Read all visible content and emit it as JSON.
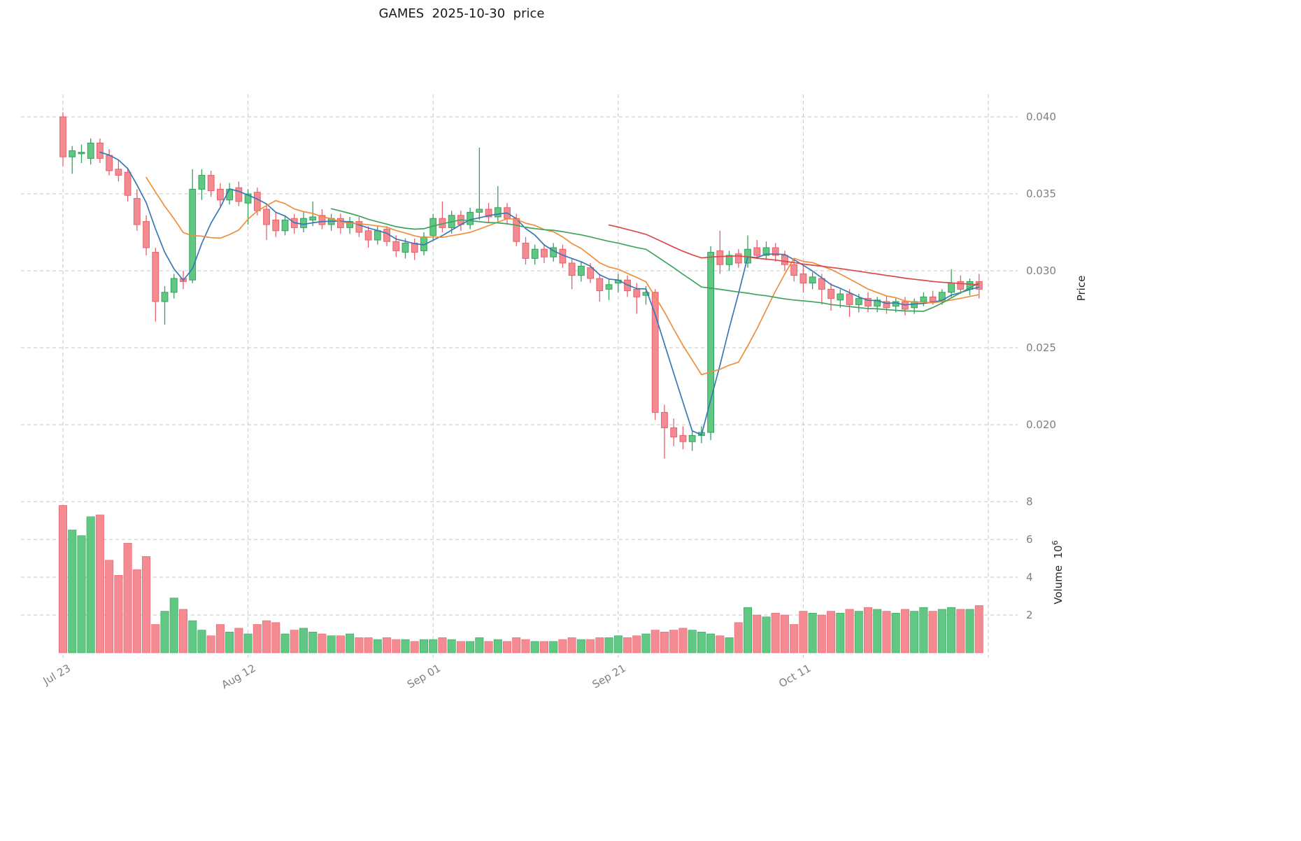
{
  "title": "GAMES  2025-10-30  price",
  "chart_data": {
    "type": "candlestick",
    "title": "GAMES  2025-10-30  price",
    "symbol": "GAMES",
    "as_of_date": "2025-10-30",
    "legend_position": "none",
    "grid": "dashed",
    "price_axis": {
      "label": "Price",
      "side": "right",
      "ticks": [
        {
          "value": 0.04,
          "label": "0.040"
        },
        {
          "value": 0.035,
          "label": "0.035"
        },
        {
          "value": 0.03,
          "label": "0.030"
        },
        {
          "value": 0.025,
          "label": "0.025"
        },
        {
          "value": 0.02,
          "label": "0.020"
        }
      ]
    },
    "volume_axis": {
      "label_base": "Volume  10",
      "label_exp": "6",
      "side": "right",
      "unit": 1000000,
      "ticks": [
        {
          "value": 8,
          "label": "8"
        },
        {
          "value": 6,
          "label": "6"
        },
        {
          "value": 4,
          "label": "4"
        },
        {
          "value": 2,
          "label": "2"
        }
      ]
    },
    "x_ticks": [
      {
        "index": 0,
        "label": "Jul 23"
      },
      {
        "index": 20,
        "label": "Aug 12"
      },
      {
        "index": 40,
        "label": "Sep 01"
      },
      {
        "index": 60,
        "label": "Sep 21"
      },
      {
        "index": 80,
        "label": "Oct 11"
      },
      {
        "index": 100,
        "label": ""
      }
    ],
    "moving_averages": [
      {
        "window": 5,
        "color": "#3a78b5"
      },
      {
        "window": 10,
        "color": "#ef8e3c"
      },
      {
        "window": 30,
        "color": "#3fa45b"
      },
      {
        "window": 60,
        "color": "#d94a4a"
      }
    ],
    "colors": {
      "up": "#61c884",
      "up_edge": "#33a15c",
      "down": "#f48a92",
      "down_edge": "#e8606b",
      "grid": "#c6c6c6",
      "tick_text": "#7f7f7f",
      "title_text": "#1a1a1a"
    },
    "columns": [
      "date",
      "open",
      "high",
      "low",
      "close",
      "volume_millions"
    ],
    "candles": [
      [
        "2025-07-23",
        0.04,
        0.0403,
        0.0368,
        0.0374,
        7.8
      ],
      [
        "2025-07-24",
        0.0374,
        0.0381,
        0.0363,
        0.0378,
        6.5
      ],
      [
        "2025-07-25",
        0.0376,
        0.0382,
        0.037,
        0.0377,
        6.2
      ],
      [
        "2025-07-26",
        0.0373,
        0.0386,
        0.0369,
        0.0383,
        7.2
      ],
      [
        "2025-07-27",
        0.0383,
        0.0386,
        0.037,
        0.0373,
        7.3
      ],
      [
        "2025-07-28",
        0.0375,
        0.0379,
        0.0362,
        0.0365,
        4.9
      ],
      [
        "2025-07-29",
        0.0366,
        0.0372,
        0.0358,
        0.0362,
        4.1
      ],
      [
        "2025-07-30",
        0.0364,
        0.0367,
        0.0345,
        0.0349,
        5.8
      ],
      [
        "2025-07-31",
        0.0347,
        0.0353,
        0.0326,
        0.033,
        4.4
      ],
      [
        "2025-08-01",
        0.0332,
        0.0336,
        0.031,
        0.0315,
        5.1
      ],
      [
        "2025-08-02",
        0.0312,
        0.0315,
        0.0267,
        0.028,
        1.5
      ],
      [
        "2025-08-03",
        0.028,
        0.029,
        0.0265,
        0.0286,
        2.2
      ],
      [
        "2025-08-04",
        0.0286,
        0.0298,
        0.0282,
        0.0295,
        2.9
      ],
      [
        "2025-08-05",
        0.0295,
        0.03,
        0.0288,
        0.0293,
        2.3
      ],
      [
        "2025-08-06",
        0.0294,
        0.0366,
        0.0292,
        0.0353,
        1.7
      ],
      [
        "2025-08-07",
        0.0353,
        0.0366,
        0.0346,
        0.0362,
        1.2
      ],
      [
        "2025-08-08",
        0.0362,
        0.0365,
        0.0348,
        0.0352,
        0.9
      ],
      [
        "2025-08-09",
        0.0353,
        0.0357,
        0.0342,
        0.0346,
        1.5
      ],
      [
        "2025-08-10",
        0.0346,
        0.0357,
        0.0343,
        0.0353,
        1.1
      ],
      [
        "2025-08-11",
        0.0354,
        0.0358,
        0.0342,
        0.0345,
        1.3
      ],
      [
        "2025-08-12",
        0.0344,
        0.0353,
        0.033,
        0.035,
        1.0
      ],
      [
        "2025-08-13",
        0.0351,
        0.0354,
        0.0336,
        0.0339,
        1.5
      ],
      [
        "2025-08-14",
        0.034,
        0.0343,
        0.032,
        0.033,
        1.7
      ],
      [
        "2025-08-15",
        0.0333,
        0.0338,
        0.0322,
        0.0326,
        1.6
      ],
      [
        "2025-08-16",
        0.0326,
        0.0336,
        0.0323,
        0.0333,
        1.0
      ],
      [
        "2025-08-17",
        0.0334,
        0.0337,
        0.0324,
        0.0328,
        1.2
      ],
      [
        "2025-08-18",
        0.0328,
        0.0338,
        0.0325,
        0.0334,
        1.3
      ],
      [
        "2025-08-19",
        0.0333,
        0.0345,
        0.0329,
        0.0335,
        1.1
      ],
      [
        "2025-08-20",
        0.0336,
        0.034,
        0.0327,
        0.033,
        1.0
      ],
      [
        "2025-08-21",
        0.033,
        0.0337,
        0.0326,
        0.0334,
        0.9
      ],
      [
        "2025-08-22",
        0.0334,
        0.0337,
        0.0324,
        0.0328,
        0.9
      ],
      [
        "2025-08-23",
        0.0328,
        0.0335,
        0.0324,
        0.0332,
        1.0
      ],
      [
        "2025-08-24",
        0.0332,
        0.0335,
        0.0322,
        0.0325,
        0.8
      ],
      [
        "2025-08-25",
        0.0326,
        0.0329,
        0.0315,
        0.032,
        0.8
      ],
      [
        "2025-08-26",
        0.032,
        0.0329,
        0.0317,
        0.0326,
        0.7
      ],
      [
        "2025-08-27",
        0.0327,
        0.0329,
        0.0316,
        0.0319,
        0.8
      ],
      [
        "2025-08-28",
        0.0319,
        0.0323,
        0.0309,
        0.0313,
        0.7
      ],
      [
        "2025-08-29",
        0.0312,
        0.0321,
        0.0308,
        0.0318,
        0.7
      ],
      [
        "2025-08-30",
        0.0318,
        0.0321,
        0.0307,
        0.0312,
        0.6
      ],
      [
        "2025-08-31",
        0.0313,
        0.0325,
        0.031,
        0.0322,
        0.7
      ],
      [
        "2025-09-01",
        0.0323,
        0.0337,
        0.032,
        0.0334,
        0.7
      ],
      [
        "2025-09-02",
        0.0334,
        0.0345,
        0.0325,
        0.0328,
        0.8
      ],
      [
        "2025-09-03",
        0.0328,
        0.0339,
        0.0324,
        0.0336,
        0.7
      ],
      [
        "2025-09-04",
        0.0336,
        0.0339,
        0.0326,
        0.033,
        0.6
      ],
      [
        "2025-09-05",
        0.033,
        0.0341,
        0.0327,
        0.0338,
        0.6
      ],
      [
        "2025-09-06",
        0.0338,
        0.038,
        0.0333,
        0.034,
        0.8
      ],
      [
        "2025-09-07",
        0.034,
        0.0344,
        0.0331,
        0.0335,
        0.6
      ],
      [
        "2025-09-08",
        0.0335,
        0.0355,
        0.0332,
        0.0341,
        0.7
      ],
      [
        "2025-09-09",
        0.0341,
        0.0344,
        0.033,
        0.0334,
        0.6
      ],
      [
        "2025-09-10",
        0.0334,
        0.0337,
        0.0316,
        0.0319,
        0.8
      ],
      [
        "2025-09-11",
        0.0318,
        0.0322,
        0.0304,
        0.0308,
        0.7
      ],
      [
        "2025-09-12",
        0.0308,
        0.0317,
        0.0304,
        0.0314,
        0.6
      ],
      [
        "2025-09-13",
        0.0314,
        0.0317,
        0.0305,
        0.0309,
        0.6
      ],
      [
        "2025-09-14",
        0.0309,
        0.0318,
        0.0306,
        0.0315,
        0.6
      ],
      [
        "2025-09-15",
        0.0314,
        0.0317,
        0.0302,
        0.0305,
        0.7
      ],
      [
        "2025-09-16",
        0.0305,
        0.0308,
        0.0288,
        0.0297,
        0.8
      ],
      [
        "2025-09-17",
        0.0297,
        0.0306,
        0.0293,
        0.0303,
        0.7
      ],
      [
        "2025-09-18",
        0.0302,
        0.0305,
        0.0292,
        0.0295,
        0.7
      ],
      [
        "2025-09-19",
        0.0295,
        0.0298,
        0.028,
        0.0287,
        0.8
      ],
      [
        "2025-09-20",
        0.0288,
        0.0295,
        0.0281,
        0.0291,
        0.8
      ],
      [
        "2025-09-21",
        0.0292,
        0.0298,
        0.0286,
        0.0294,
        0.9
      ],
      [
        "2025-09-22",
        0.0294,
        0.0297,
        0.0283,
        0.0287,
        0.8
      ],
      [
        "2025-09-23",
        0.0288,
        0.0292,
        0.0272,
        0.0283,
        0.9
      ],
      [
        "2025-09-24",
        0.0284,
        0.029,
        0.0278,
        0.0286,
        1.0
      ],
      [
        "2025-09-25",
        0.0286,
        0.0288,
        0.0203,
        0.0208,
        1.2
      ],
      [
        "2025-09-26",
        0.0208,
        0.0213,
        0.0178,
        0.0198,
        1.1
      ],
      [
        "2025-09-27",
        0.0198,
        0.0204,
        0.0186,
        0.0192,
        1.2
      ],
      [
        "2025-09-28",
        0.0193,
        0.0199,
        0.0184,
        0.0189,
        1.3
      ],
      [
        "2025-09-29",
        0.0189,
        0.0196,
        0.0183,
        0.0193,
        1.2
      ],
      [
        "2025-09-30",
        0.0193,
        0.0199,
        0.0188,
        0.0195,
        1.1
      ],
      [
        "2025-10-01",
        0.0195,
        0.0316,
        0.019,
        0.0312,
        1.0
      ],
      [
        "2025-10-02",
        0.0313,
        0.0326,
        0.0298,
        0.0304,
        0.9
      ],
      [
        "2025-10-03",
        0.0304,
        0.0313,
        0.03,
        0.031,
        0.8
      ],
      [
        "2025-10-04",
        0.0311,
        0.0314,
        0.0302,
        0.0305,
        1.6
      ],
      [
        "2025-10-05",
        0.0305,
        0.0323,
        0.0302,
        0.0314,
        2.4
      ],
      [
        "2025-10-06",
        0.0315,
        0.032,
        0.0308,
        0.031,
        2.0
      ],
      [
        "2025-10-07",
        0.031,
        0.0319,
        0.0307,
        0.0315,
        1.9
      ],
      [
        "2025-10-08",
        0.0315,
        0.0318,
        0.0306,
        0.031,
        2.1
      ],
      [
        "2025-10-09",
        0.031,
        0.0313,
        0.03,
        0.0304,
        2.0
      ],
      [
        "2025-10-10",
        0.0304,
        0.0308,
        0.0293,
        0.0297,
        1.5
      ],
      [
        "2025-10-11",
        0.0298,
        0.0303,
        0.0286,
        0.0292,
        2.2
      ],
      [
        "2025-10-12",
        0.0292,
        0.0299,
        0.0288,
        0.0296,
        2.1
      ],
      [
        "2025-10-13",
        0.0295,
        0.0298,
        0.0278,
        0.0288,
        2.0
      ],
      [
        "2025-10-14",
        0.0288,
        0.0292,
        0.0274,
        0.0282,
        2.2
      ],
      [
        "2025-10-15",
        0.0281,
        0.0288,
        0.0276,
        0.0285,
        2.1
      ],
      [
        "2025-10-16",
        0.0285,
        0.0288,
        0.027,
        0.0278,
        2.3
      ],
      [
        "2025-10-17",
        0.0278,
        0.0285,
        0.0273,
        0.0282,
        2.2
      ],
      [
        "2025-10-18",
        0.0282,
        0.0286,
        0.0273,
        0.0277,
        2.4
      ],
      [
        "2025-10-19",
        0.0277,
        0.0283,
        0.0273,
        0.0281,
        2.3
      ],
      [
        "2025-10-20",
        0.028,
        0.0284,
        0.0272,
        0.0276,
        2.2
      ],
      [
        "2025-10-21",
        0.0277,
        0.0282,
        0.0273,
        0.028,
        2.1
      ],
      [
        "2025-10-22",
        0.028,
        0.0283,
        0.0271,
        0.0275,
        2.3
      ],
      [
        "2025-10-23",
        0.0276,
        0.0282,
        0.0272,
        0.028,
        2.2
      ],
      [
        "2025-10-24",
        0.028,
        0.0286,
        0.0277,
        0.0283,
        2.4
      ],
      [
        "2025-10-25",
        0.0283,
        0.0287,
        0.0278,
        0.028,
        2.2
      ],
      [
        "2025-10-26",
        0.0281,
        0.0288,
        0.0278,
        0.0286,
        2.3
      ],
      [
        "2025-10-27",
        0.0286,
        0.0301,
        0.0283,
        0.0292,
        2.4
      ],
      [
        "2025-10-28",
        0.0293,
        0.0297,
        0.0285,
        0.0288,
        2.3
      ],
      [
        "2025-10-29",
        0.0288,
        0.0295,
        0.0284,
        0.0293,
        2.3
      ],
      [
        "2025-10-30",
        0.0293,
        0.0298,
        0.0282,
        0.0288,
        2.5
      ]
    ]
  }
}
